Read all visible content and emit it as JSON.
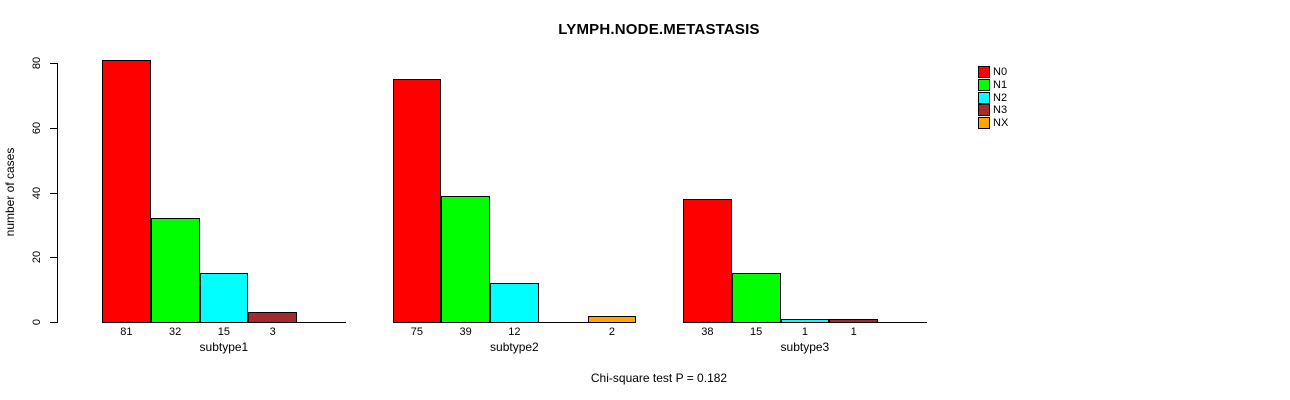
{
  "chart_data": {
    "type": "bar",
    "title": "LYMPH.NODE.METASTASIS",
    "ylabel": "number of cases",
    "xlabel": "",
    "footnote": "Chi-square test P = 0.182",
    "ylim": [
      0,
      80
    ],
    "yticks": [
      0,
      20,
      40,
      60,
      80
    ],
    "grid": false,
    "bar_value_labels": true,
    "legend": {
      "position": "top-right",
      "entries": [
        {
          "label": "N0",
          "color": "#FF0000"
        },
        {
          "label": "N1",
          "color": "#00FF00"
        },
        {
          "label": "N2",
          "color": "#00FFFF"
        },
        {
          "label": "N3",
          "color": "#A52A2A"
        },
        {
          "label": "NX",
          "color": "#FFA500"
        }
      ]
    },
    "categories": [
      "subtype1",
      "subtype2",
      "subtype3"
    ],
    "series": [
      {
        "name": "N0",
        "color": "#FF0000",
        "values": [
          81,
          75,
          38
        ]
      },
      {
        "name": "N1",
        "color": "#00FF00",
        "values": [
          32,
          39,
          15
        ]
      },
      {
        "name": "N2",
        "color": "#00FFFF",
        "values": [
          15,
          12,
          1
        ]
      },
      {
        "name": "N3",
        "color": "#A52A2A",
        "values": [
          3,
          0,
          1
        ]
      },
      {
        "name": "NX",
        "color": "#FFA500",
        "values": [
          0,
          2,
          0
        ]
      }
    ]
  }
}
